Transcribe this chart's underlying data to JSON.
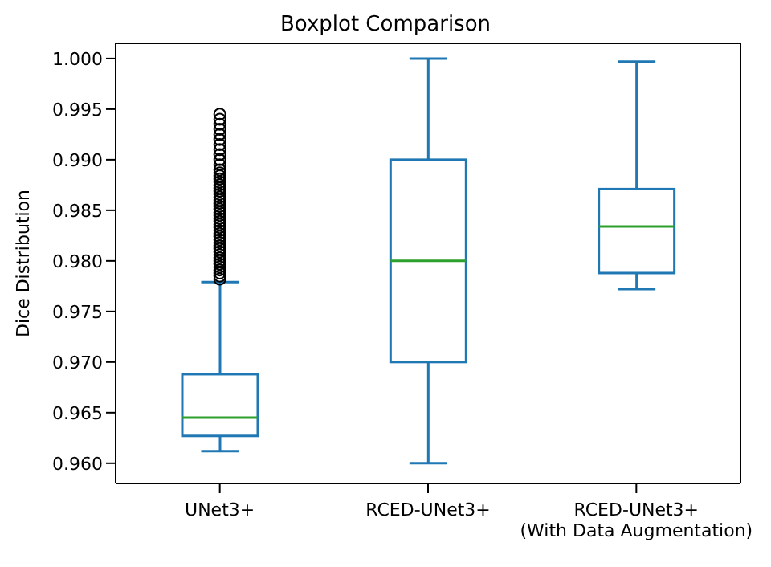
{
  "chart_data": {
    "type": "box",
    "title": "Boxplot Comparison",
    "ylabel": "Dice Distribution",
    "categories": [
      "UNet3+",
      "RCED-UNet3+",
      "RCED-UNet3+\n(With Data Augmentation)"
    ],
    "color": "#1f77b4",
    "boxes": [
      {
        "low": 0.9612,
        "q1": 0.9627,
        "median": 0.9645,
        "q3": 0.9688,
        "high": 0.9779,
        "outliers": [
          0.9782,
          0.9785,
          0.9788,
          0.9791,
          0.9794,
          0.9797,
          0.98,
          0.9803,
          0.9806,
          0.9809,
          0.9812,
          0.9815,
          0.9818,
          0.9821,
          0.9824,
          0.9827,
          0.983,
          0.9833,
          0.9836,
          0.9839,
          0.9842,
          0.9845,
          0.9848,
          0.9851,
          0.9854,
          0.9857,
          0.986,
          0.9863,
          0.9866,
          0.9869,
          0.9872,
          0.9875,
          0.9878,
          0.9881,
          0.9884,
          0.9887,
          0.989,
          0.9895,
          0.99,
          0.9905,
          0.991,
          0.9915,
          0.992,
          0.9925,
          0.993,
          0.9935,
          0.994,
          0.9945
        ]
      },
      {
        "low": 0.96,
        "q1": 0.97,
        "median": 0.98,
        "q3": 0.99,
        "high": 1.0
      },
      {
        "low": 0.9772,
        "q1": 0.9788,
        "median": 0.9834,
        "q3": 0.9871,
        "high": 0.9997
      }
    ],
    "ylim": [
      0.958,
      1.0015
    ],
    "yticks": [
      {
        "value": 0.96,
        "label": "0.960"
      },
      {
        "value": 0.965,
        "label": "0.965"
      },
      {
        "value": 0.97,
        "label": "0.970"
      },
      {
        "value": 0.975,
        "label": "0.975"
      },
      {
        "value": 0.98,
        "label": "0.980"
      },
      {
        "value": 0.985,
        "label": "0.985"
      },
      {
        "value": 0.99,
        "label": "0.990"
      },
      {
        "value": 0.995,
        "label": "0.995"
      },
      {
        "value": 1.0,
        "label": "1.000"
      }
    ]
  }
}
